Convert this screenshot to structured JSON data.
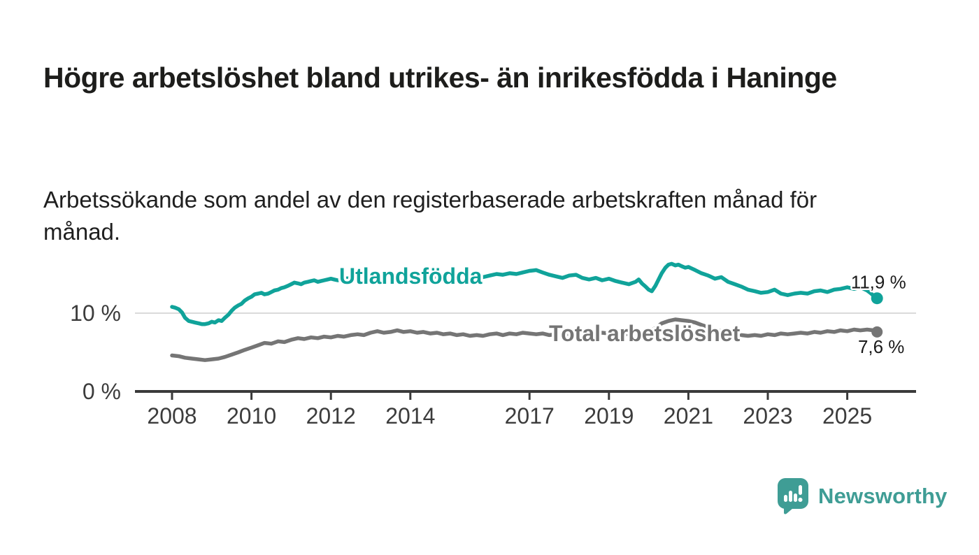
{
  "header": {
    "title": "Högre arbetslöshet bland utrikes- än inrikesfödda i Haninge",
    "subtitle": "Arbetssökande som andel av den registerbaserade arbetskraften månad för månad."
  },
  "chart_data": {
    "type": "line",
    "title": "Högre arbetslöshet bland utrikes- än inrikesfödda i Haninge",
    "subtitle": "Arbetssökande som andel av den registerbaserade arbetskraften månad för månad.",
    "unit": "%",
    "grid": "single horizontal gridline at 10 %",
    "legend_position": "inline-labels-on-lines",
    "x_axis": {
      "label": "",
      "ticks": [
        2008,
        2010,
        2012,
        2014,
        2017,
        2019,
        2021,
        2023,
        2025
      ],
      "range": [
        2007.1,
        2026.7
      ]
    },
    "y_axis": {
      "label": "",
      "ticks": [
        {
          "value": 0,
          "label": "0 %"
        },
        {
          "value": 10,
          "label": "10 %"
        }
      ],
      "gridline_at": 10,
      "range": [
        0,
        18
      ]
    },
    "series": [
      {
        "name": "Utlandsfödda",
        "color": "#10a39a",
        "end_label": "11,9 %",
        "last_value": 11.9,
        "points": [
          [
            2008.0,
            10.8
          ],
          [
            2008.08,
            10.7
          ],
          [
            2008.17,
            10.5
          ],
          [
            2008.25,
            10.1
          ],
          [
            2008.33,
            9.4
          ],
          [
            2008.42,
            9.0
          ],
          [
            2008.5,
            8.9
          ],
          [
            2008.58,
            8.8
          ],
          [
            2008.67,
            8.7
          ],
          [
            2008.75,
            8.6
          ],
          [
            2008.83,
            8.6
          ],
          [
            2008.92,
            8.7
          ],
          [
            2009.0,
            8.9
          ],
          [
            2009.08,
            8.8
          ],
          [
            2009.17,
            9.1
          ],
          [
            2009.25,
            9.0
          ],
          [
            2009.33,
            9.4
          ],
          [
            2009.42,
            9.8
          ],
          [
            2009.5,
            10.3
          ],
          [
            2009.58,
            10.7
          ],
          [
            2009.67,
            11.0
          ],
          [
            2009.75,
            11.2
          ],
          [
            2009.83,
            11.6
          ],
          [
            2009.92,
            11.9
          ],
          [
            2010.0,
            12.1
          ],
          [
            2010.08,
            12.4
          ],
          [
            2010.17,
            12.5
          ],
          [
            2010.25,
            12.6
          ],
          [
            2010.33,
            12.4
          ],
          [
            2010.42,
            12.5
          ],
          [
            2010.5,
            12.7
          ],
          [
            2010.58,
            12.9
          ],
          [
            2010.67,
            13.0
          ],
          [
            2010.75,
            13.2
          ],
          [
            2010.83,
            13.3
          ],
          [
            2010.92,
            13.5
          ],
          [
            2011.0,
            13.7
          ],
          [
            2011.08,
            13.9
          ],
          [
            2011.17,
            13.8
          ],
          [
            2011.25,
            13.7
          ],
          [
            2011.33,
            13.9
          ],
          [
            2011.42,
            14.0
          ],
          [
            2011.5,
            14.1
          ],
          [
            2011.58,
            14.2
          ],
          [
            2011.67,
            14.0
          ],
          [
            2011.75,
            14.1
          ],
          [
            2011.83,
            14.2
          ],
          [
            2011.92,
            14.3
          ],
          [
            2012.0,
            14.4
          ],
          [
            2012.08,
            14.3
          ],
          [
            2012.17,
            14.2
          ],
          [
            2012.25,
            14.3
          ],
          [
            2012.33,
            14.5
          ],
          [
            2012.42,
            14.4
          ],
          [
            2012.5,
            14.6
          ],
          [
            2012.58,
            14.5
          ],
          [
            2012.67,
            14.4
          ],
          [
            2012.75,
            14.5
          ],
          [
            2012.83,
            14.4
          ],
          [
            2012.92,
            14.6
          ],
          [
            2013.0,
            14.4
          ],
          [
            2013.17,
            14.6
          ],
          [
            2013.33,
            14.4
          ],
          [
            2013.5,
            14.7
          ],
          [
            2013.67,
            14.9
          ],
          [
            2013.83,
            14.6
          ],
          [
            2014.0,
            14.8
          ],
          [
            2014.17,
            15.0
          ],
          [
            2014.33,
            14.7
          ],
          [
            2014.5,
            14.9
          ],
          [
            2014.67,
            14.6
          ],
          [
            2014.83,
            14.8
          ],
          [
            2015.0,
            14.6
          ],
          [
            2015.17,
            14.9
          ],
          [
            2015.33,
            15.0
          ],
          [
            2015.5,
            14.7
          ],
          [
            2015.67,
            14.9
          ],
          [
            2015.83,
            14.6
          ],
          [
            2016.0,
            14.8
          ],
          [
            2016.17,
            15.0
          ],
          [
            2016.33,
            14.9
          ],
          [
            2016.5,
            15.1
          ],
          [
            2016.67,
            15.0
          ],
          [
            2016.83,
            15.2
          ],
          [
            2017.0,
            15.4
          ],
          [
            2017.17,
            15.5
          ],
          [
            2017.33,
            15.2
          ],
          [
            2017.5,
            14.9
          ],
          [
            2017.67,
            14.7
          ],
          [
            2017.83,
            14.5
          ],
          [
            2018.0,
            14.8
          ],
          [
            2018.17,
            14.9
          ],
          [
            2018.33,
            14.5
          ],
          [
            2018.5,
            14.3
          ],
          [
            2018.67,
            14.5
          ],
          [
            2018.83,
            14.2
          ],
          [
            2019.0,
            14.4
          ],
          [
            2019.17,
            14.1
          ],
          [
            2019.33,
            13.9
          ],
          [
            2019.5,
            13.7
          ],
          [
            2019.67,
            14.0
          ],
          [
            2019.75,
            14.3
          ],
          [
            2019.83,
            13.8
          ],
          [
            2019.92,
            13.4
          ],
          [
            2020.0,
            13.0
          ],
          [
            2020.08,
            12.8
          ],
          [
            2020.17,
            13.5
          ],
          [
            2020.25,
            14.3
          ],
          [
            2020.33,
            15.1
          ],
          [
            2020.42,
            15.8
          ],
          [
            2020.5,
            16.2
          ],
          [
            2020.58,
            16.3
          ],
          [
            2020.67,
            16.1
          ],
          [
            2020.75,
            16.2
          ],
          [
            2020.83,
            16.0
          ],
          [
            2020.92,
            15.8
          ],
          [
            2021.0,
            15.9
          ],
          [
            2021.17,
            15.5
          ],
          [
            2021.33,
            15.1
          ],
          [
            2021.5,
            14.8
          ],
          [
            2021.67,
            14.4
          ],
          [
            2021.83,
            14.6
          ],
          [
            2022.0,
            14.0
          ],
          [
            2022.17,
            13.7
          ],
          [
            2022.33,
            13.4
          ],
          [
            2022.5,
            13.0
          ],
          [
            2022.67,
            12.8
          ],
          [
            2022.83,
            12.6
          ],
          [
            2023.0,
            12.7
          ],
          [
            2023.17,
            13.0
          ],
          [
            2023.33,
            12.5
          ],
          [
            2023.5,
            12.3
          ],
          [
            2023.67,
            12.5
          ],
          [
            2023.83,
            12.6
          ],
          [
            2024.0,
            12.5
          ],
          [
            2024.17,
            12.8
          ],
          [
            2024.33,
            12.9
          ],
          [
            2024.5,
            12.7
          ],
          [
            2024.67,
            13.0
          ],
          [
            2024.83,
            13.1
          ],
          [
            2025.0,
            13.3
          ],
          [
            2025.17,
            13.1
          ],
          [
            2025.33,
            13.3
          ],
          [
            2025.5,
            12.9
          ],
          [
            2025.58,
            12.6
          ],
          [
            2025.67,
            12.2
          ],
          [
            2025.75,
            11.9
          ]
        ]
      },
      {
        "name": "Total arbetslöshet",
        "color": "#757575",
        "end_label": "7,6 %",
        "last_value": 7.6,
        "points": [
          [
            2008.0,
            4.6
          ],
          [
            2008.17,
            4.5
          ],
          [
            2008.33,
            4.3
          ],
          [
            2008.5,
            4.2
          ],
          [
            2008.67,
            4.1
          ],
          [
            2008.83,
            4.0
          ],
          [
            2009.0,
            4.1
          ],
          [
            2009.17,
            4.2
          ],
          [
            2009.33,
            4.4
          ],
          [
            2009.5,
            4.7
          ],
          [
            2009.67,
            5.0
          ],
          [
            2009.83,
            5.3
          ],
          [
            2010.0,
            5.6
          ],
          [
            2010.17,
            5.9
          ],
          [
            2010.33,
            6.2
          ],
          [
            2010.5,
            6.1
          ],
          [
            2010.67,
            6.4
          ],
          [
            2010.83,
            6.3
          ],
          [
            2011.0,
            6.6
          ],
          [
            2011.17,
            6.8
          ],
          [
            2011.33,
            6.7
          ],
          [
            2011.5,
            6.9
          ],
          [
            2011.67,
            6.8
          ],
          [
            2011.83,
            7.0
          ],
          [
            2012.0,
            6.9
          ],
          [
            2012.17,
            7.1
          ],
          [
            2012.33,
            7.0
          ],
          [
            2012.5,
            7.2
          ],
          [
            2012.67,
            7.3
          ],
          [
            2012.83,
            7.2
          ],
          [
            2013.0,
            7.5
          ],
          [
            2013.17,
            7.7
          ],
          [
            2013.33,
            7.5
          ],
          [
            2013.5,
            7.6
          ],
          [
            2013.67,
            7.8
          ],
          [
            2013.83,
            7.6
          ],
          [
            2014.0,
            7.7
          ],
          [
            2014.17,
            7.5
          ],
          [
            2014.33,
            7.6
          ],
          [
            2014.5,
            7.4
          ],
          [
            2014.67,
            7.5
          ],
          [
            2014.83,
            7.3
          ],
          [
            2015.0,
            7.4
          ],
          [
            2015.17,
            7.2
          ],
          [
            2015.33,
            7.3
          ],
          [
            2015.5,
            7.1
          ],
          [
            2015.67,
            7.2
          ],
          [
            2015.83,
            7.1
          ],
          [
            2016.0,
            7.3
          ],
          [
            2016.17,
            7.4
          ],
          [
            2016.33,
            7.2
          ],
          [
            2016.5,
            7.4
          ],
          [
            2016.67,
            7.3
          ],
          [
            2016.83,
            7.5
          ],
          [
            2017.0,
            7.4
          ],
          [
            2017.17,
            7.3
          ],
          [
            2017.33,
            7.4
          ],
          [
            2017.5,
            7.2
          ],
          [
            2017.67,
            7.3
          ],
          [
            2017.83,
            7.4
          ],
          [
            2018.0,
            7.3
          ],
          [
            2018.17,
            7.4
          ],
          [
            2018.33,
            7.3
          ],
          [
            2018.5,
            7.5
          ],
          [
            2018.67,
            7.4
          ],
          [
            2018.83,
            7.5
          ],
          [
            2019.0,
            7.4
          ],
          [
            2019.17,
            7.5
          ],
          [
            2019.33,
            7.4
          ],
          [
            2019.5,
            7.3
          ],
          [
            2019.67,
            7.4
          ],
          [
            2019.83,
            7.5
          ],
          [
            2020.0,
            7.6
          ],
          [
            2020.17,
            8.1
          ],
          [
            2020.33,
            8.7
          ],
          [
            2020.5,
            9.0
          ],
          [
            2020.67,
            9.2
          ],
          [
            2020.83,
            9.1
          ],
          [
            2021.0,
            9.0
          ],
          [
            2021.17,
            8.8
          ],
          [
            2021.33,
            8.5
          ],
          [
            2021.5,
            8.2
          ],
          [
            2021.67,
            7.9
          ],
          [
            2021.83,
            7.7
          ],
          [
            2022.0,
            7.5
          ],
          [
            2022.17,
            7.3
          ],
          [
            2022.33,
            7.2
          ],
          [
            2022.5,
            7.1
          ],
          [
            2022.67,
            7.2
          ],
          [
            2022.83,
            7.1
          ],
          [
            2023.0,
            7.3
          ],
          [
            2023.17,
            7.2
          ],
          [
            2023.33,
            7.4
          ],
          [
            2023.5,
            7.3
          ],
          [
            2023.67,
            7.4
          ],
          [
            2023.83,
            7.5
          ],
          [
            2024.0,
            7.4
          ],
          [
            2024.17,
            7.6
          ],
          [
            2024.33,
            7.5
          ],
          [
            2024.5,
            7.7
          ],
          [
            2024.67,
            7.6
          ],
          [
            2024.83,
            7.8
          ],
          [
            2025.0,
            7.7
          ],
          [
            2025.17,
            7.9
          ],
          [
            2025.33,
            7.8
          ],
          [
            2025.5,
            7.9
          ],
          [
            2025.67,
            7.8
          ],
          [
            2025.75,
            7.6
          ]
        ]
      }
    ]
  },
  "footer": {
    "brand": "Newsworthy",
    "brand_color": "#3f9d95",
    "logo_icon": "speech-bubble-bar-chart-icon"
  }
}
